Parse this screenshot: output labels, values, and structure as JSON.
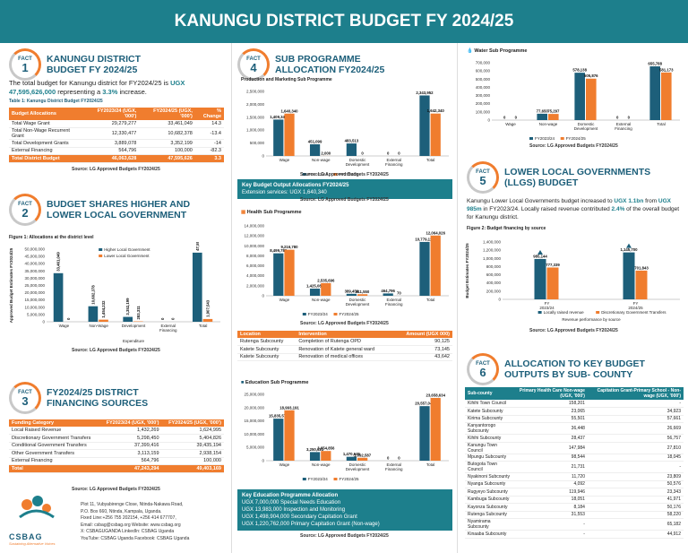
{
  "page": {
    "title": "KANUNGU DISTRICT BUDGET FY 2024/25"
  },
  "fact1": {
    "label": "FACT",
    "num": "1",
    "title1": "KANUNGU DISTRICT",
    "title2": "BUDGET FY 2024/25",
    "text_a": "The total budget for Kanungu district for FY2024/25 is",
    "text_b": "UGX 47,595,626,000",
    "text_c": " representing a ",
    "text_d": "3.3%",
    "text_e": " increase.",
    "caption": "Table 1: Kanungu District Budget FY2024/25",
    "headers": [
      "Budget Allocations",
      "FY2023/24 (UGX, '000')",
      "FY2024/25 (UGX, '000')",
      "% Change"
    ],
    "rows": [
      [
        "Total Wage Grant",
        "29,279,277",
        "33,461,049",
        "14.3"
      ],
      [
        "Total Non-Wage Recurrent Grant",
        "12,330,477",
        "10,682,378",
        "-13.4"
      ],
      [
        "Total Development Grants",
        "3,889,078",
        "3,352,199",
        "-14"
      ],
      [
        "External Financing",
        "564,796",
        "100,000",
        "-82.3"
      ]
    ],
    "total": [
      "Total District Budget",
      "46,063,628",
      "47,595,626",
      "3.3"
    ],
    "source": "Source: LG Approved Budgets FY2024/25"
  },
  "fact2": {
    "label": "FACT",
    "num": "2",
    "title1": "BUDGET SHARES HIGHER AND",
    "title2": "LOWER LOCAL GOVERNMENT",
    "caption": "Figure 1: Allocations at the district level",
    "source": "Source: LG Approved Budgets FY2024/25"
  },
  "fact3": {
    "label": "FACT",
    "num": "3",
    "title1": "FY2024/25 DISTRICT",
    "title2": "FINANCING SOURCES",
    "headers": [
      "Funding Category",
      "FY2023/24 (UGX, '000')",
      "FY2024/25 (UGX, '000')"
    ],
    "rows": [
      [
        "Local Raised Revenue",
        "1,432,269",
        "1,624,995"
      ],
      [
        "Discretionary Government Transfers",
        "5,298,450",
        "5,404,826"
      ],
      [
        "Conditional Government Transfers",
        "37,399,416",
        "39,435,194"
      ],
      [
        "Other Government Transfers",
        "3,113,159",
        "2,938,154"
      ],
      [
        "External Financing",
        "564,796",
        "100,000"
      ]
    ],
    "total": [
      "Total",
      "47,243,294",
      "49,403,169"
    ],
    "source": "Source: LG Approved Budgets FY2024/25"
  },
  "contact": {
    "logo": "CSBAG",
    "tagline": "Sustaining Alternative Voices",
    "l1": "Plot 11, Vubyabirenge Close, Ntinda-Nakawa Road,",
    "l2": "P.O. Box 660, Ntinda, Kampala, Uganda.",
    "l3": "Fixed Line:+256 755 202154, +256 414 677707,",
    "l4": "Email: csbag@csbag.org    Website: www.csbag.org",
    "l5": "X: CSBAGUGANDA        LinkedIn: CSBAG Uganda",
    "l6": "YouTube: CSBAG Uganda  Facebook: CSBAG Uganda"
  },
  "fact4": {
    "label": "FACT",
    "num": "4",
    "title1": "SUB PROGRAMME",
    "title2": "ALLOCATION FY2024/25",
    "prod_title": "Production and Marketing Sub Programme",
    "prod_source": "Source: LG Approved Budgets FY2024/25",
    "key_title": "Key Budget Output Allocations FY2024/25",
    "key_line": "Extension services: UGX 1,640,340",
    "key_source": "Source: LG Approved Budgets FY2024/25",
    "health_title": "Health Sub Programme",
    "health_source": "Source: LG Approved Budgets FY2024/25",
    "inter_headers": [
      "Location",
      "Intervention",
      "Amount (UGX 000)"
    ],
    "inter_rows": [
      [
        "Rutenga Subcounty",
        "Completion of Rutenga OPD",
        "90,125"
      ],
      [
        "Katete Subcounty",
        "Renovation of Katete general ward",
        "73,145"
      ],
      [
        "Katete Subcounty",
        "Renovation of medical offices",
        "43,642"
      ]
    ],
    "edu_title": "Education Sub Programme",
    "edu_key_title": "Key Education Programme Allocation",
    "edu_key_lines": [
      "UGX 7,000,000 Special Needs Education",
      "UGX 13,983,000 Inspection and Monitoring",
      "UGX 1,498,904,000 Secondary Capitation Grant",
      "UGX 1,220,762,000 Primary Capitation Grant (Non-wage)"
    ],
    "edu_source": "Source: LG Approved Budgets FY2024/25"
  },
  "water": {
    "title": "Water Sub Programme",
    "source": "Source: LG Approved Budgets FY2024/25"
  },
  "fact5": {
    "label": "FACT",
    "num": "5",
    "title1": "LOWER LOCAL GOVERNMENTS",
    "title2": "(LLGS) BUDGET",
    "t1": "Kanungu Lower Local Governments budget increased to ",
    "t2": "UGX 1.1bn",
    "t3": " from ",
    "t4": "UGX 985m",
    "t5": " in FY2023/24. Locally raised revenue contributed ",
    "t6": "2.4%",
    "t7": " of the overall budget for Kanungu district.",
    "caption": "Figure 2: Budget financing by source",
    "source": "Source: LG Approved Budgets FY2024/25"
  },
  "fact6": {
    "label": "FACT",
    "num": "6",
    "title1": "ALLOCATION TO KEY BUDGET",
    "title2": "OUTPUTS BY SUB- COUNTY",
    "headers": [
      "Sub-county",
      "Primary Health Care Non-wage (UGX, '000')",
      "Capitation Grant-Primary School - Non-wage (UGX, '000')"
    ],
    "rows": [
      [
        "Kihihi Town Council",
        "158,201",
        "-"
      ],
      [
        "Katete Subcounty",
        "23,065",
        "34,923"
      ],
      [
        "Kirima Subcounty",
        "55,501",
        "57,661"
      ],
      [
        "Kanyantorogo Subcounty",
        "36,448",
        "26,669"
      ],
      [
        "Kihihi Subcounty",
        "28,437",
        "56,757"
      ],
      [
        "Kanungu Town Council",
        "147,984",
        "27,810"
      ],
      [
        "Mpungu Subcounty",
        "98,544",
        "18,045"
      ],
      [
        "Butogota Town Council",
        "21,731",
        "-"
      ],
      [
        "Nyakinoni Subcounty",
        "11,720",
        "23,809"
      ],
      [
        "Nyanga Subcounty",
        "4,092",
        "50,576"
      ],
      [
        "Rugyeyo Subcounty",
        "119,946",
        "23,343"
      ],
      [
        "Kambuga Subcounty",
        "18,051",
        "41,971"
      ],
      [
        "Kayonza Subcounty",
        "8,184",
        "50,176"
      ],
      [
        "Rutenga Subcounty",
        "31,553",
        "58,220"
      ],
      [
        "Nyamirama Subcounty",
        "-",
        "65,182"
      ],
      [
        "Kinaaba Subcounty",
        "-",
        "44,912"
      ]
    ]
  },
  "chart_data": [
    {
      "id": "fig1",
      "type": "bar",
      "title": "Figure 1: Allocations at the district level",
      "xlabel": "Expenditure",
      "ylabel": "Approved Budget Estimates FY2024/25",
      "categories": [
        "Wage",
        "Non-Wage",
        "Development",
        "External Financing",
        "Total"
      ],
      "series": [
        {
          "name": "Higher Local Government",
          "color": "#1d5f7a",
          "values": [
            33461049,
            10682378,
            3352199,
            0,
            47595626
          ]
        },
        {
          "name": "Lower Local Government",
          "color": "#f07d2e",
          "values": [
            0,
            1454232,
            283311,
            0,
            1907543
          ]
        }
      ],
      "labels": [
        [
          "33,461,049",
          "10,682,378",
          "3,352,199",
          "0",
          "47,595,626"
        ],
        [
          "0",
          "1,454,232",
          "283,311",
          "0",
          "1,907,543"
        ]
      ],
      "yticks": [
        "0",
        "5,000,000",
        "10,000,000",
        "15,000,000",
        "20,000,000",
        "25,000,000",
        "30,000,000",
        "35,000,000",
        "40,000,000",
        "45,000,000",
        "50,000,000"
      ],
      "ylim": [
        0,
        50000000
      ]
    },
    {
      "id": "prod",
      "type": "bar",
      "title": "Production and Marketing Sub Programme",
      "categories": [
        "Wage",
        "Non-wage",
        "Domestic Development",
        "External Financing",
        "Total"
      ],
      "series": [
        {
          "name": "FY2023/24",
          "color": "#1d5f7a",
          "values": [
            1409348,
            451099,
            483513,
            0,
            2343952
          ]
        },
        {
          "name": "FY2024/25",
          "color": "#f07d2e",
          "values": [
            1640340,
            2000,
            0,
            0,
            1642340
          ]
        }
      ],
      "labels": [
        [
          "1,409,348",
          "451,099",
          "483,513",
          "0",
          "2,343,952"
        ],
        [
          "1,640,340",
          "2,000",
          "0",
          "0",
          "1,642,340"
        ]
      ],
      "yticks": [
        "0",
        "500,000",
        "1,000,000",
        "1,500,000",
        "2,000,000",
        "2,500,000"
      ],
      "ylim": [
        0,
        2500000
      ]
    },
    {
      "id": "health",
      "type": "bar",
      "title": "Health Sub Programme",
      "categories": [
        "Wage",
        "Non-wage",
        "Domestic Development",
        "External Financing",
        "Total"
      ],
      "series": [
        {
          "name": "FY2023/24",
          "color": "#1d5f7a",
          "values": [
            8499780,
            1425084,
            389456,
            464796,
            10779116
          ]
        },
        {
          "name": "FY2024/25",
          "color": "#f07d2e",
          "values": [
            9216780,
            2535696,
            311550,
            70,
            12064026
          ]
        }
      ],
      "labels": [
        [
          "8,499,780",
          "1,425,084",
          "389,456",
          "464,796",
          "10,779,116"
        ],
        [
          "9,216,780",
          "2,535,696",
          "311,550",
          "70",
          "12,064,026"
        ]
      ],
      "yticks": [
        "0",
        "2,000,000",
        "4,000,000",
        "6,000,000",
        "8,000,000",
        "10,000,000",
        "12,000,000",
        "14,000,000"
      ],
      "ylim": [
        0,
        14000000
      ]
    },
    {
      "id": "edu",
      "type": "bar",
      "title": "Education Sub Programme",
      "categories": [
        "Wage",
        "Non-wage",
        "Domestic Development",
        "External Financing",
        "Total"
      ],
      "series": [
        {
          "name": "FY2023/24",
          "color": "#1d5f7a",
          "values": [
            15835579,
            3250621,
            1470645,
            0,
            20557045
          ]
        },
        {
          "name": "FY2024/25",
          "color": "#f07d2e",
          "values": [
            18993191,
            3654856,
            1092587,
            0,
            23658634
          ]
        }
      ],
      "labels": [
        [
          "15,835,579",
          "3,250,621",
          "1,470,645",
          "0",
          "20,557,045"
        ],
        [
          "18,993,191",
          "3,654,856",
          "1,092,587",
          "0",
          "23,658,634"
        ]
      ],
      "yticks": [
        "0",
        "5,000,000",
        "10,000,000",
        "15,000,000",
        "20,000,000",
        "25,000,000"
      ],
      "ylim": [
        0,
        25000000
      ]
    },
    {
      "id": "water",
      "type": "bar",
      "title": "Water Sub Programme",
      "categories": [
        "Wage",
        "Non-wage",
        "Domestic Development",
        "External Financing",
        "Total"
      ],
      "series": [
        {
          "name": "FY2023/24",
          "color": "#1d5f7a",
          "values": [
            0,
            77650,
            578138,
            0,
            655788
          ]
        },
        {
          "name": "FY2024/25",
          "color": "#f07d2e",
          "values": [
            0,
            75297,
            505876,
            0,
            581173
          ]
        }
      ],
      "labels": [
        [
          "0",
          "77,650",
          "578,138",
          "0",
          "655,788"
        ],
        [
          "0",
          "75,297",
          "505,876",
          "0",
          "581,173"
        ]
      ],
      "yticks": [
        "0",
        "100,000",
        "200,000",
        "300,000",
        "400,000",
        "500,000",
        "600,000",
        "700,000"
      ],
      "ylim": [
        0,
        700000
      ]
    },
    {
      "id": "fig2",
      "type": "bar",
      "title": "Figure 2: Budget financing by source",
      "xlabel": "Revenue performance by source",
      "ylabel": "Budget Estimates FY2024/25",
      "categories": [
        "FY 2023/24",
        "FY 2024/25"
      ],
      "series": [
        {
          "name": "Locally raised revenue",
          "color": "#1d5f7a",
          "values": [
            985144,
            1145700
          ]
        },
        {
          "name": "Discretionary Government Transfers",
          "color": "#f07d2e",
          "values": [
            777339,
            701843
          ]
        }
      ],
      "labels": [
        [
          "985,144",
          "1,145,700"
        ],
        [
          "777,339",
          "701,843"
        ]
      ],
      "yticks": [
        "0",
        "200,000",
        "400,000",
        "600,000",
        "800,000",
        "1,000,000",
        "1,200,000",
        "1,400,000"
      ],
      "ylim": [
        0,
        1400000
      ]
    }
  ]
}
